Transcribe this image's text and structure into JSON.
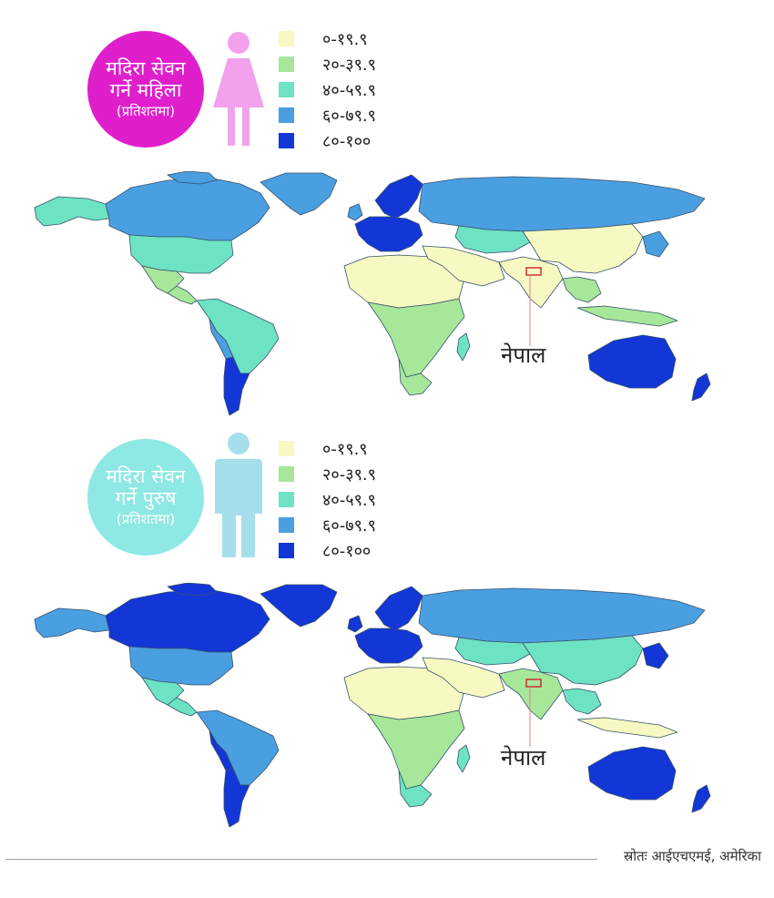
{
  "legend_scale": [
    {
      "label": "०-१९.९",
      "color": "#f7f9c2"
    },
    {
      "label": "२०-३९.९",
      "color": "#a6e79a"
    },
    {
      "label": "४०-५९.९",
      "color": "#6de3c4"
    },
    {
      "label": "६०-७९.९",
      "color": "#4a9fe1"
    },
    {
      "label": "८०-१००",
      "color": "#1336d6"
    }
  ],
  "female_panel": {
    "badge_line1": "मदिरा सेवन",
    "badge_line2": "गर्ने महिला",
    "badge_line3": "(प्रतिशतमा)",
    "badge_color": "#e01fcc",
    "figure_icon": "female-figure-icon",
    "figure_color": "#f2a2ec",
    "nepal_label": "नेपाल"
  },
  "male_panel": {
    "badge_line1": "मदिरा सेवन",
    "badge_line2": "गर्ने पुरुष",
    "badge_line3": "(प्रतिशतमा)",
    "badge_color": "#8ee8e4",
    "figure_icon": "male-figure-icon",
    "figure_color": "#a6dfec",
    "nepal_label": "नेपाल"
  },
  "source_text": "स्रोतः आईएचएमई, अमेरिका"
}
